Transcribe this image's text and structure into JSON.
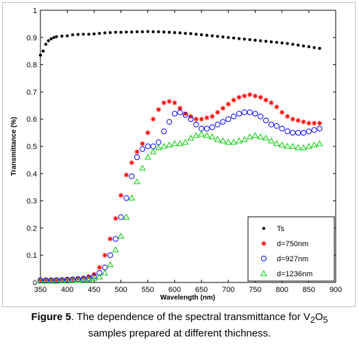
{
  "caption": {
    "label": "Figure 5",
    "text_before": ". The dependence of the spectral transmittance for V",
    "sub1": "2",
    "mid": "O",
    "sub2": "5",
    "line2": "samples prepared at different thichness."
  },
  "chart_data": {
    "type": "scatter",
    "xlabel": "Wavelength (nm)",
    "ylabel": "Transmittance (%)",
    "xlim": [
      350,
      900
    ],
    "ylim": [
      0,
      1
    ],
    "xticks": [
      350,
      400,
      450,
      500,
      550,
      600,
      650,
      700,
      750,
      800,
      850,
      900
    ],
    "yticks": [
      0,
      0.1,
      0.2,
      0.3,
      0.4,
      0.5,
      0.6,
      0.7,
      0.8,
      0.9,
      1
    ],
    "grid": false,
    "legend_position": "bottom-right",
    "series": [
      {
        "name": "Ts",
        "marker": "dot",
        "color": "#000000",
        "x": [
          350,
          355,
          360,
          365,
          370,
          375,
          380,
          390,
          400,
          410,
          420,
          430,
          440,
          450,
          460,
          470,
          480,
          490,
          500,
          510,
          520,
          530,
          540,
          550,
          560,
          570,
          580,
          590,
          600,
          610,
          620,
          630,
          640,
          650,
          660,
          670,
          680,
          690,
          700,
          710,
          720,
          730,
          740,
          750,
          760,
          770,
          780,
          790,
          800,
          810,
          820,
          830,
          840,
          850,
          860,
          870
        ],
        "y": [
          0.835,
          0.85,
          0.875,
          0.888,
          0.895,
          0.9,
          0.903,
          0.905,
          0.906,
          0.91,
          0.911,
          0.912,
          0.912,
          0.913,
          0.915,
          0.917,
          0.918,
          0.919,
          0.919,
          0.92,
          0.92,
          0.921,
          0.921,
          0.922,
          0.921,
          0.921,
          0.92,
          0.919,
          0.918,
          0.917,
          0.915,
          0.914,
          0.912,
          0.91,
          0.908,
          0.906,
          0.904,
          0.902,
          0.9,
          0.898,
          0.896,
          0.894,
          0.892,
          0.89,
          0.888,
          0.886,
          0.884,
          0.882,
          0.88,
          0.878,
          0.875,
          0.872,
          0.869,
          0.866,
          0.863,
          0.86
        ]
      },
      {
        "name": "d=750nm",
        "marker": "asterisk",
        "color": "#ff0000",
        "x": [
          350,
          360,
          370,
          380,
          390,
          400,
          410,
          420,
          430,
          440,
          450,
          460,
          470,
          480,
          490,
          500,
          510,
          520,
          530,
          540,
          550,
          560,
          570,
          580,
          590,
          600,
          610,
          620,
          630,
          640,
          650,
          660,
          670,
          680,
          690,
          700,
          710,
          720,
          730,
          740,
          750,
          760,
          770,
          780,
          790,
          800,
          810,
          820,
          830,
          840,
          850,
          860,
          870
        ],
        "y": [
          0.01,
          0.01,
          0.01,
          0.01,
          0.011,
          0.012,
          0.013,
          0.015,
          0.017,
          0.022,
          0.03,
          0.055,
          0.1,
          0.16,
          0.235,
          0.32,
          0.395,
          0.44,
          0.48,
          0.51,
          0.55,
          0.6,
          0.635,
          0.66,
          0.665,
          0.66,
          0.64,
          0.62,
          0.61,
          0.6,
          0.6,
          0.605,
          0.61,
          0.625,
          0.64,
          0.655,
          0.67,
          0.68,
          0.685,
          0.69,
          0.685,
          0.68,
          0.67,
          0.66,
          0.645,
          0.625,
          0.61,
          0.6,
          0.595,
          0.59,
          0.585,
          0.585,
          0.585
        ]
      },
      {
        "name": "d=927nm",
        "marker": "circle",
        "color": "#0000ff",
        "x": [
          350,
          360,
          370,
          380,
          390,
          400,
          410,
          420,
          430,
          440,
          450,
          460,
          470,
          480,
          490,
          500,
          510,
          520,
          530,
          540,
          550,
          560,
          570,
          580,
          590,
          600,
          610,
          620,
          630,
          640,
          650,
          660,
          670,
          680,
          690,
          700,
          710,
          720,
          730,
          740,
          750,
          760,
          770,
          780,
          790,
          800,
          810,
          820,
          830,
          840,
          850,
          860,
          870
        ],
        "y": [
          0.008,
          0.008,
          0.008,
          0.009,
          0.009,
          0.01,
          0.011,
          0.012,
          0.013,
          0.016,
          0.022,
          0.035,
          0.055,
          0.1,
          0.16,
          0.24,
          0.31,
          0.39,
          0.46,
          0.49,
          0.5,
          0.5,
          0.515,
          0.555,
          0.59,
          0.62,
          0.625,
          0.615,
          0.6,
          0.58,
          0.565,
          0.565,
          0.57,
          0.58,
          0.59,
          0.6,
          0.61,
          0.62,
          0.625,
          0.625,
          0.62,
          0.61,
          0.595,
          0.58,
          0.575,
          0.565,
          0.555,
          0.55,
          0.55,
          0.55,
          0.555,
          0.56,
          0.565
        ]
      },
      {
        "name": "d=1236nm",
        "marker": "triangle",
        "color": "#00cc00",
        "x": [
          350,
          360,
          370,
          380,
          390,
          400,
          410,
          420,
          430,
          440,
          450,
          460,
          470,
          480,
          490,
          500,
          510,
          520,
          530,
          540,
          550,
          560,
          570,
          580,
          590,
          600,
          610,
          620,
          630,
          640,
          650,
          660,
          670,
          680,
          690,
          700,
          710,
          720,
          730,
          740,
          750,
          760,
          770,
          780,
          790,
          800,
          810,
          820,
          830,
          840,
          850,
          860,
          870
        ],
        "y": [
          0.005,
          0.005,
          0.005,
          0.005,
          0.006,
          0.006,
          0.007,
          0.008,
          0.009,
          0.011,
          0.015,
          0.02,
          0.035,
          0.065,
          0.12,
          0.17,
          0.24,
          0.31,
          0.37,
          0.42,
          0.46,
          0.48,
          0.495,
          0.5,
          0.505,
          0.51,
          0.51,
          0.515,
          0.53,
          0.54,
          0.545,
          0.54,
          0.535,
          0.525,
          0.52,
          0.515,
          0.515,
          0.52,
          0.525,
          0.535,
          0.54,
          0.535,
          0.53,
          0.52,
          0.51,
          0.505,
          0.5,
          0.5,
          0.495,
          0.495,
          0.5,
          0.505,
          0.51
        ]
      }
    ]
  }
}
